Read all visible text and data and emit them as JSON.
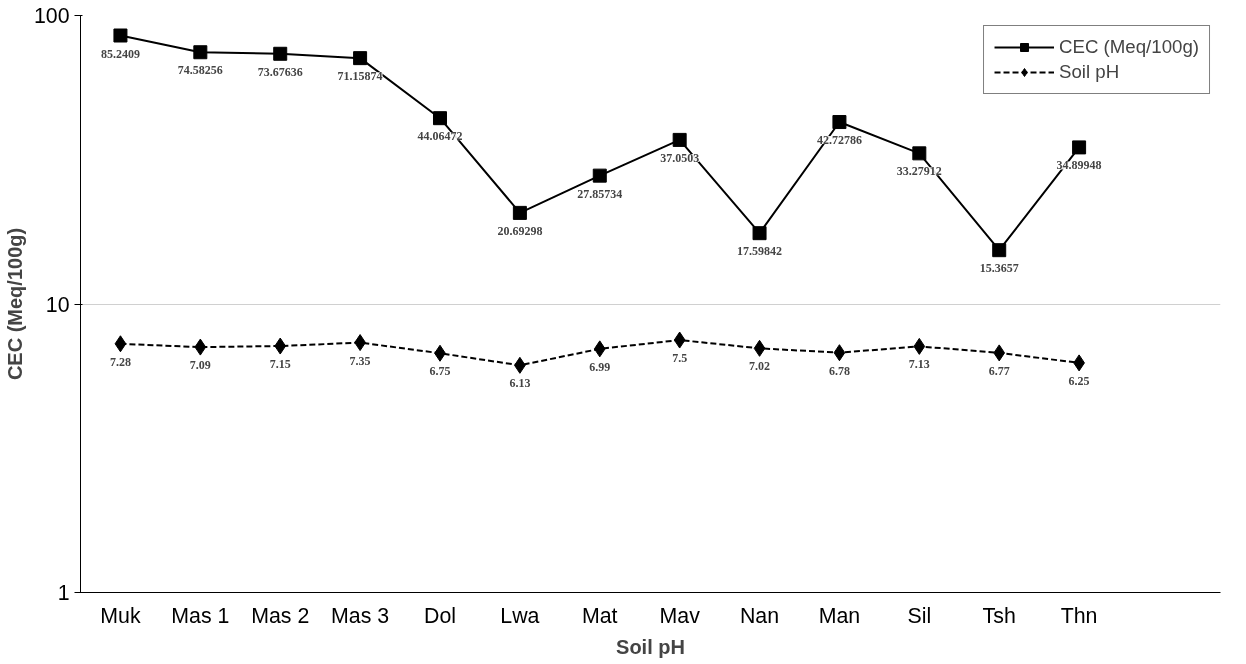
{
  "chart_data": {
    "type": "line",
    "xlabel": "Soil pH",
    "ylabel": "CEC (Meq/100g)",
    "categories": [
      "Muk",
      "Mas 1",
      "Mas 2",
      "Mas 3",
      "Dol",
      "Lwa",
      "Mat",
      "Mav",
      "Nan",
      "Man",
      "Sil",
      "Tsh",
      "Thn"
    ],
    "series": [
      {
        "name": "CEC (Meq/100g)",
        "color": "#000000",
        "marker": "square",
        "line_style": "solid",
        "values": [
          85.2409,
          74.58256,
          73.67636,
          71.15874,
          44.06472,
          20.69298,
          27.85734,
          37.0503,
          17.59842,
          42.72786,
          33.27912,
          15.3657,
          34.89948
        ]
      },
      {
        "name": "Soil pH",
        "color": "#000000",
        "marker": "diamond",
        "line_style": "dashed",
        "values": [
          7.28,
          7.09,
          7.15,
          7.35,
          6.75,
          6.13,
          6.99,
          7.5,
          7.02,
          6.78,
          7.13,
          6.77,
          6.25
        ]
      }
    ],
    "log": "y",
    "ylim": [
      1,
      100
    ],
    "yticks": [
      1,
      10,
      100
    ],
    "grid": "y",
    "legend": "top right",
    "data_labels": true
  }
}
